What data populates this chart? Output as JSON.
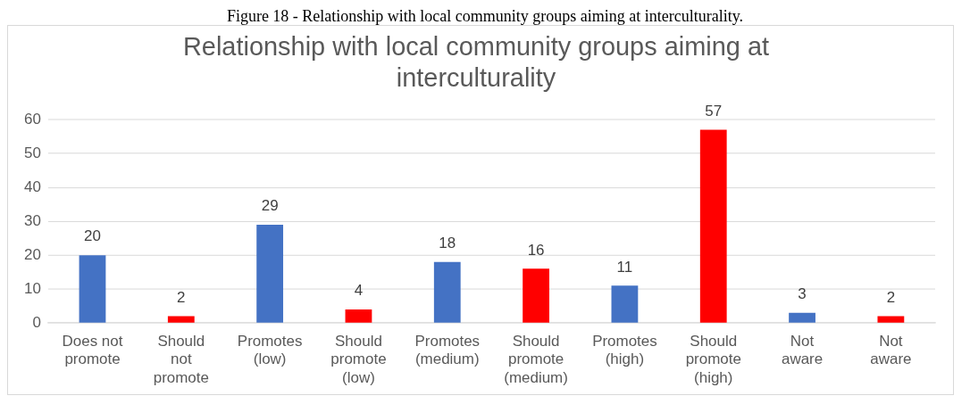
{
  "chart_data": {
    "type": "bar",
    "title": "Relationship with local community groups aiming at interculturality",
    "annotations": [
      "Figure 18 - Relationship with local community groups aiming at interculturality."
    ],
    "categories": [
      "Does not promote",
      "Should not promote",
      "Promotes (low)",
      "Should promote (low)",
      "Promotes (medium)",
      "Should promote (medium)",
      "Promotes (high)",
      "Should promote (high)",
      "Not aware",
      "Not aware"
    ],
    "values": [
      20,
      2,
      29,
      4,
      18,
      16,
      11,
      57,
      3,
      2
    ],
    "colors": [
      "#4472c4",
      "#ff0000",
      "#4472c4",
      "#ff0000",
      "#4472c4",
      "#ff0000",
      "#4472c4",
      "#ff0000",
      "#4472c4",
      "#ff0000"
    ],
    "ylim": [
      0,
      60
    ],
    "yticks": [
      0,
      10,
      20,
      30,
      40,
      50,
      60
    ],
    "grid": "y",
    "data_labels": true,
    "legend": false
  }
}
